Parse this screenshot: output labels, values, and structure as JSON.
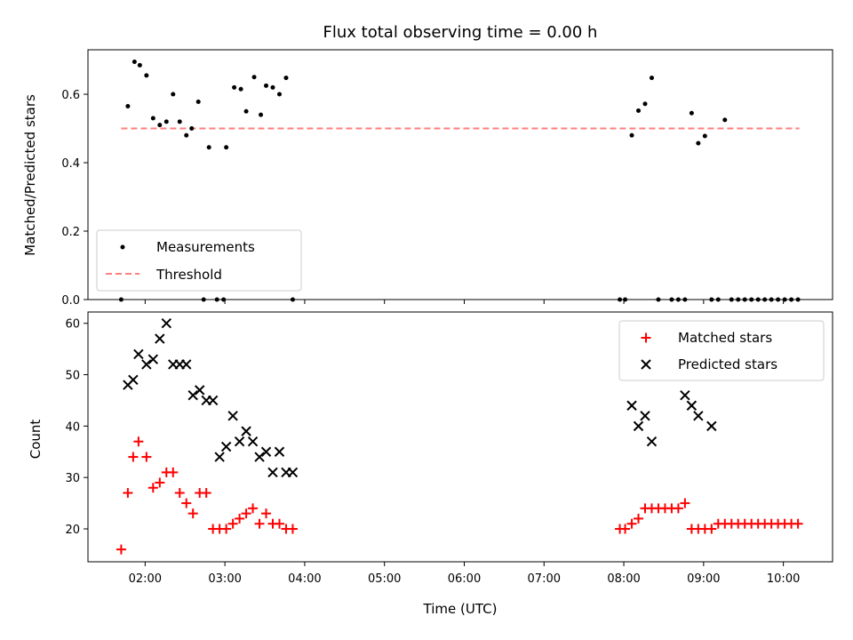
{
  "colors": {
    "measurements": "#000000",
    "threshold": "#ff7f7f",
    "matched": "#ff0000",
    "predicted": "#000000"
  },
  "chart_data": [
    {
      "type": "scatter",
      "title": "Flux total observing time = 0.00 h",
      "xlabel": "",
      "ylabel": "Matched/Predicted stars",
      "xlim": [
        "01:17",
        "10:37"
      ],
      "ylim": [
        0,
        0.73
      ],
      "yticks": [
        0.0,
        0.2,
        0.4,
        0.6
      ],
      "ytick_labels": [
        "0.0",
        "0.2",
        "0.4",
        "0.6"
      ],
      "legend_position": "lower-left",
      "legend": [
        "Measurements",
        "Threshold"
      ],
      "threshold": 0.5,
      "threshold_span": [
        "01:42",
        "10:12"
      ],
      "series": [
        {
          "name": "Measurements",
          "marker": "dot",
          "x": [
            "01:42",
            "01:47",
            "01:52",
            "01:56",
            "02:01",
            "02:06",
            "02:11",
            "02:16",
            "02:21",
            "02:26",
            "02:31",
            "02:35",
            "02:40",
            "02:44",
            "02:48",
            "02:54",
            "02:59",
            "03:01",
            "03:07",
            "03:12",
            "03:16",
            "03:22",
            "03:27",
            "03:31",
            "03:36",
            "03:41",
            "03:46",
            "03:51",
            "07:57",
            "08:01",
            "08:06",
            "08:11",
            "08:16",
            "08:21",
            "08:26",
            "08:36",
            "08:41",
            "08:46",
            "08:51",
            "08:56",
            "09:01",
            "09:06",
            "09:11",
            "09:16",
            "09:21",
            "09:26",
            "09:31",
            "09:36",
            "09:41",
            "09:46",
            "09:51",
            "09:56",
            "10:01",
            "10:06",
            "10:11"
          ],
          "y": [
            0.0,
            0.565,
            0.695,
            0.685,
            0.655,
            0.53,
            0.51,
            0.52,
            0.6,
            0.52,
            0.48,
            0.5,
            0.578,
            0.0,
            0.445,
            0.0,
            0.0,
            0.445,
            0.62,
            0.615,
            0.55,
            0.65,
            0.54,
            0.625,
            0.62,
            0.6,
            0.648,
            0.0,
            0.0,
            0.0,
            0.48,
            0.552,
            0.572,
            0.648,
            0.0,
            0.0,
            0.0,
            0.0,
            0.545,
            0.457,
            0.478,
            0.0,
            0.0,
            0.525,
            0.0,
            0.0,
            0.0,
            0.0,
            0.0,
            0.0,
            0.0,
            0.0,
            0.0,
            0.0,
            0.0
          ]
        }
      ]
    },
    {
      "type": "scatter",
      "title": "",
      "xlabel": "Time (UTC)",
      "ylabel": "Count",
      "xlim": [
        "01:17",
        "10:37"
      ],
      "ylim": [
        13.6,
        62.2
      ],
      "yticks": [
        20,
        30,
        40,
        50,
        60
      ],
      "xticks": [
        "02:00",
        "03:00",
        "04:00",
        "05:00",
        "06:00",
        "07:00",
        "08:00",
        "09:00",
        "10:00"
      ],
      "legend_position": "upper-right",
      "legend": [
        "Matched stars",
        "Predicted stars"
      ],
      "series": [
        {
          "name": "Matched stars",
          "marker": "plus",
          "x": [
            "01:42",
            "01:47",
            "01:51",
            "01:55",
            "02:01",
            "02:06",
            "02:11",
            "02:16",
            "02:21",
            "02:26",
            "02:31",
            "02:36",
            "02:41",
            "02:46",
            "02:51",
            "02:56",
            "03:01",
            "03:06",
            "03:11",
            "03:16",
            "03:21",
            "03:26",
            "03:31",
            "03:36",
            "03:41",
            "03:46",
            "03:51",
            "07:57",
            "08:01",
            "08:06",
            "08:11",
            "08:16",
            "08:21",
            "08:26",
            "08:31",
            "08:36",
            "08:41",
            "08:46",
            "08:51",
            "08:56",
            "09:01",
            "09:06",
            "09:11",
            "09:16",
            "09:21",
            "09:26",
            "09:31",
            "09:36",
            "09:41",
            "09:46",
            "09:51",
            "09:56",
            "10:01",
            "10:06",
            "10:11"
          ],
          "y": [
            16,
            27,
            34,
            37,
            34,
            28,
            29,
            31,
            31,
            27,
            25,
            23,
            27,
            27,
            20,
            20,
            20,
            21,
            22,
            23,
            24,
            21,
            23,
            21,
            21,
            20,
            20,
            20,
            20,
            21,
            22,
            24,
            24,
            24,
            24,
            24,
            24,
            25,
            20,
            20,
            20,
            20,
            21,
            21,
            21,
            21,
            21,
            21,
            21,
            21,
            21,
            21,
            21,
            21,
            21
          ]
        },
        {
          "name": "Predicted stars",
          "marker": "x",
          "x": [
            "01:47",
            "01:51",
            "01:55",
            "02:01",
            "02:06",
            "02:11",
            "02:16",
            "02:21",
            "02:26",
            "02:31",
            "02:36",
            "02:41",
            "02:46",
            "02:51",
            "02:56",
            "03:01",
            "03:06",
            "03:11",
            "03:16",
            "03:21",
            "03:26",
            "03:31",
            "03:36",
            "03:41",
            "03:46",
            "03:51",
            "08:06",
            "08:11",
            "08:16",
            "08:21",
            "08:46",
            "08:51",
            "08:56",
            "09:06"
          ],
          "y": [
            48,
            49,
            54,
            52,
            53,
            57,
            60,
            52,
            52,
            52,
            46,
            47,
            45,
            45,
            34,
            36,
            42,
            37,
            39,
            37,
            34,
            35,
            31,
            35,
            31,
            31,
            44,
            40,
            42,
            37,
            46,
            44,
            42,
            40
          ]
        }
      ]
    }
  ]
}
